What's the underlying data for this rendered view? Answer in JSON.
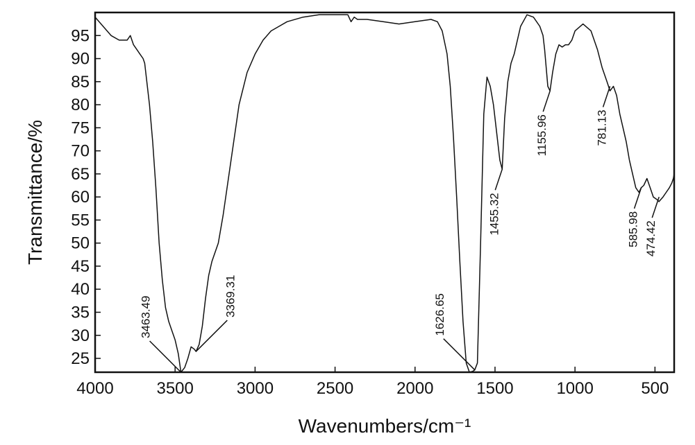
{
  "chart_data": {
    "type": "line",
    "title": "",
    "xlabel": "Wavenumbers/cm⁻¹",
    "ylabel": "Transmittance/%",
    "xlim": [
      4000,
      380
    ],
    "ylim": [
      22,
      100
    ],
    "x_reversed": true,
    "grid": false,
    "x_ticks": [
      4000,
      3500,
      3000,
      2500,
      2000,
      1500,
      1000,
      500
    ],
    "y_ticks": [
      25,
      30,
      35,
      40,
      45,
      50,
      55,
      60,
      65,
      70,
      75,
      80,
      85,
      90,
      95
    ],
    "series": [
      {
        "name": "",
        "x": [
          4000,
          3950,
          3900,
          3850,
          3800,
          3780,
          3760,
          3740,
          3720,
          3700,
          3690,
          3680,
          3660,
          3640,
          3620,
          3600,
          3580,
          3560,
          3540,
          3520,
          3500,
          3480,
          3463.49,
          3440,
          3420,
          3400,
          3380,
          3369.31,
          3350,
          3330,
          3310,
          3290,
          3270,
          3250,
          3230,
          3200,
          3150,
          3100,
          3050,
          3000,
          2950,
          2900,
          2850,
          2800,
          2700,
          2600,
          2500,
          2420,
          2400,
          2380,
          2360,
          2300,
          2200,
          2100,
          2000,
          1900,
          1860,
          1830,
          1800,
          1780,
          1760,
          1740,
          1720,
          1700,
          1680,
          1660,
          1640,
          1626.65,
          1610,
          1590,
          1570,
          1550,
          1530,
          1510,
          1490,
          1470,
          1455.32,
          1440,
          1420,
          1400,
          1380,
          1360,
          1340,
          1300,
          1260,
          1220,
          1200,
          1190,
          1180,
          1170,
          1155.96,
          1140,
          1120,
          1100,
          1080,
          1060,
          1040,
          1020,
          1000,
          950,
          900,
          860,
          830,
          800,
          781.13,
          760,
          740,
          720,
          700,
          680,
          660,
          640,
          620,
          600,
          585.98,
          570,
          550,
          530,
          510,
          490,
          474.42,
          450,
          430,
          410,
          395,
          385,
          380
        ],
        "y": [
          99,
          97,
          95,
          94,
          94,
          95,
          93,
          92,
          91,
          90,
          89,
          86,
          80,
          72,
          62,
          50,
          42,
          36,
          33,
          31,
          29,
          26,
          22,
          23,
          25,
          27.5,
          27,
          26.5,
          28,
          32,
          38,
          43,
          46,
          48,
          50,
          56,
          68,
          80,
          87,
          91,
          94,
          96,
          97,
          98,
          99,
          99.5,
          99.5,
          99.5,
          98,
          99,
          98.5,
          98.5,
          98,
          97.5,
          98,
          98.5,
          98,
          96,
          91,
          84,
          73,
          60,
          46,
          33,
          24,
          22,
          22.2,
          22.5,
          24,
          50,
          78,
          86,
          84,
          80,
          74,
          68,
          66,
          77,
          85,
          89,
          91,
          94,
          97,
          99.5,
          99,
          97,
          95,
          92,
          88,
          84,
          83,
          87,
          91,
          93,
          92.5,
          93,
          93,
          94,
          96,
          97.5,
          96,
          92,
          88,
          85,
          83,
          84,
          82,
          78,
          75,
          72,
          68,
          65,
          62,
          61,
          62,
          62.5,
          64,
          62,
          60,
          59.5,
          59,
          60,
          61,
          62,
          63,
          64,
          65
        ]
      }
    ],
    "annotations": [
      {
        "label": "3463.49",
        "x": 3463.49,
        "y": 22
      },
      {
        "label": "3369.31",
        "x": 3369.31,
        "y": 26.5
      },
      {
        "label": "1626.65",
        "x": 1626.65,
        "y": 22.5
      },
      {
        "label": "1455.32",
        "x": 1455.32,
        "y": 66
      },
      {
        "label": "1155.96",
        "x": 1155.96,
        "y": 83
      },
      {
        "label": "781.13",
        "x": 781.13,
        "y": 84
      },
      {
        "label": "585.98",
        "x": 585.98,
        "y": 62
      },
      {
        "label": "474.42",
        "x": 474.42,
        "y": 60
      }
    ]
  }
}
